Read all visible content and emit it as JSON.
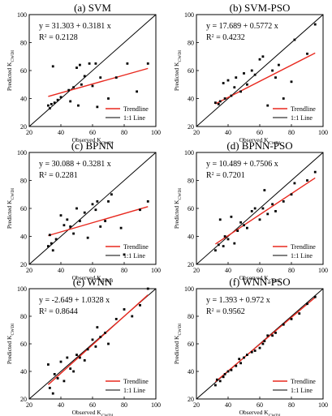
{
  "chart_data": [
    {
      "type": "scatter",
      "title": "(a) SVM",
      "equation": "y = 31.303 + 0.3181 x",
      "r2": "R² = 0.2128",
      "xlabel": "Observed KCWDI",
      "ylabel": "Predicted KCWDI",
      "legend": [
        "Trendline",
        "1:1 Line"
      ],
      "xlim": [
        20,
        100
      ],
      "ylim": [
        20,
        100
      ],
      "xticks": [
        20,
        40,
        60,
        80,
        100
      ],
      "yticks": [
        20,
        40,
        60,
        80,
        100
      ],
      "trendline": {
        "intercept": 31.303,
        "slope": 0.3181
      },
      "x": [
        32,
        33,
        34,
        35,
        36,
        38,
        40,
        45,
        46,
        48,
        50,
        51,
        52,
        53,
        55,
        58,
        60,
        62,
        63,
        65,
        70,
        75,
        82,
        88,
        95
      ],
      "y": [
        35,
        33,
        36,
        63,
        37,
        39,
        41,
        46,
        38,
        48,
        62,
        35,
        64,
        50,
        56,
        65,
        49,
        65,
        34,
        55,
        40,
        55,
        65,
        45,
        65
      ]
    },
    {
      "type": "scatter",
      "title": "(b) SVM-PSO",
      "equation": "y = 17.689 + 0.5772 x",
      "r2": "R² = 0.4232",
      "xlabel": "Observed KCWDI",
      "ylabel": "Predicted KCWDI",
      "legend": [
        "Trendline",
        "1:1 Line"
      ],
      "xlim": [
        20,
        100
      ],
      "ylim": [
        20,
        100
      ],
      "xticks": [
        20,
        40,
        60,
        80,
        100
      ],
      "yticks": [
        20,
        40,
        60,
        80,
        100
      ],
      "trendline": {
        "intercept": 17.689,
        "slope": 0.5772
      },
      "x": [
        32,
        34,
        35,
        37,
        38,
        40,
        42,
        44,
        45,
        48,
        50,
        52,
        55,
        57,
        60,
        62,
        65,
        68,
        70,
        72,
        75,
        80,
        82,
        90,
        95
      ],
      "y": [
        37,
        36,
        38,
        51,
        40,
        53,
        42,
        48,
        55,
        45,
        58,
        50,
        60,
        57,
        68,
        70,
        35,
        60,
        55,
        64,
        40,
        52,
        82,
        72,
        93
      ]
    },
    {
      "type": "scatter",
      "title": "(c) BPNN",
      "equation": "y = 30.088 + 0.3281 x",
      "r2": "R² = 0.2281",
      "xlabel": "Observed KCWDI",
      "ylabel": "Predicted KCWDI",
      "legend": [
        "Trendline",
        "1:1 Line"
      ],
      "xlim": [
        20,
        100
      ],
      "ylim": [
        20,
        100
      ],
      "xticks": [
        20,
        40,
        60,
        80,
        100
      ],
      "yticks": [
        20,
        40,
        60,
        80,
        100
      ],
      "trendline": {
        "intercept": 30.088,
        "slope": 0.3281
      },
      "x": [
        32,
        33,
        34,
        35,
        37,
        40,
        42,
        44,
        46,
        48,
        50,
        52,
        55,
        57,
        60,
        62,
        63,
        65,
        68,
        70,
        72,
        78,
        80,
        90,
        95
      ],
      "y": [
        33,
        41,
        35,
        30,
        38,
        55,
        48,
        52,
        47,
        42,
        60,
        51,
        57,
        39,
        63,
        59,
        65,
        47,
        51,
        65,
        70,
        46,
        27,
        59,
        65
      ]
    },
    {
      "type": "scatter",
      "title": "(d) BPNN-PSO",
      "equation": "y = 10.489 + 0.7506 x",
      "r2": "R² = 0.7201",
      "xlabel": "Observed KCWDI",
      "ylabel": "Predicted KCWDI",
      "legend": [
        "Trendline",
        "1:1 Line"
      ],
      "xlim": [
        20,
        100
      ],
      "ylim": [
        20,
        100
      ],
      "xticks": [
        20,
        40,
        60,
        80,
        100
      ],
      "yticks": [
        20,
        40,
        60,
        80,
        100
      ],
      "trendline": {
        "intercept": 10.489,
        "slope": 0.7506
      },
      "x": [
        32,
        34,
        35,
        37,
        38,
        40,
        42,
        44,
        46,
        48,
        50,
        52,
        55,
        57,
        60,
        62,
        63,
        65,
        68,
        70,
        75,
        80,
        82,
        90,
        95
      ],
      "y": [
        30,
        34,
        52,
        33,
        40,
        38,
        54,
        35,
        44,
        50,
        48,
        46,
        58,
        60,
        52,
        60,
        73,
        56,
        63,
        58,
        65,
        70,
        78,
        80,
        86
      ]
    },
    {
      "type": "scatter",
      "title": "(e) WNN",
      "equation": "y = -2.649 + 1.0328 x",
      "r2": "R² = 0.8644",
      "xlabel": "Observed KCWDI",
      "ylabel": "Predicted KCWDI",
      "legend": [
        "Trendline",
        "1:1 Line"
      ],
      "xlim": [
        20,
        100
      ],
      "ylim": [
        20,
        100
      ],
      "xticks": [
        20,
        40,
        60,
        80,
        100
      ],
      "yticks": [
        20,
        40,
        60,
        80,
        100
      ],
      "trendline": {
        "intercept": -2.649,
        "slope": 1.0328
      },
      "x": [
        32,
        33,
        35,
        36,
        38,
        40,
        42,
        44,
        46,
        48,
        50,
        52,
        55,
        57,
        60,
        62,
        63,
        65,
        68,
        70,
        75,
        80,
        85,
        90,
        95
      ],
      "y": [
        45,
        28,
        24,
        38,
        35,
        47,
        33,
        50,
        42,
        40,
        52,
        50,
        48,
        56,
        63,
        58,
        72,
        65,
        68,
        60,
        78,
        85,
        80,
        88,
        100
      ]
    },
    {
      "type": "scatter",
      "title": "(f) WNN-PSO",
      "equation": "y = 1.393 + 0.972 x",
      "r2": "R² = 0.9562",
      "xlabel": "Observed KCWDI",
      "ylabel": "Predicted KCWDI",
      "legend": [
        "Trendline",
        "1:1 Line"
      ],
      "xlim": [
        20,
        100
      ],
      "ylim": [
        20,
        100
      ],
      "xticks": [
        20,
        40,
        60,
        80,
        100
      ],
      "yticks": [
        20,
        40,
        60,
        80,
        100
      ],
      "trendline": {
        "intercept": 1.393,
        "slope": 0.972
      },
      "x": [
        32,
        33,
        35,
        37,
        38,
        40,
        42,
        45,
        47,
        48,
        50,
        52,
        55,
        57,
        60,
        62,
        63,
        65,
        68,
        70,
        75,
        80,
        85,
        90,
        95
      ],
      "y": [
        30,
        34,
        33,
        36,
        38,
        40,
        41,
        44,
        49,
        46,
        50,
        52,
        54,
        55,
        57,
        60,
        62,
        66,
        66,
        68,
        74,
        78,
        82,
        89,
        94
      ]
    }
  ],
  "colors": {
    "trendline": "#e8281e",
    "one_to_one": "#000000",
    "points": "#000000"
  }
}
